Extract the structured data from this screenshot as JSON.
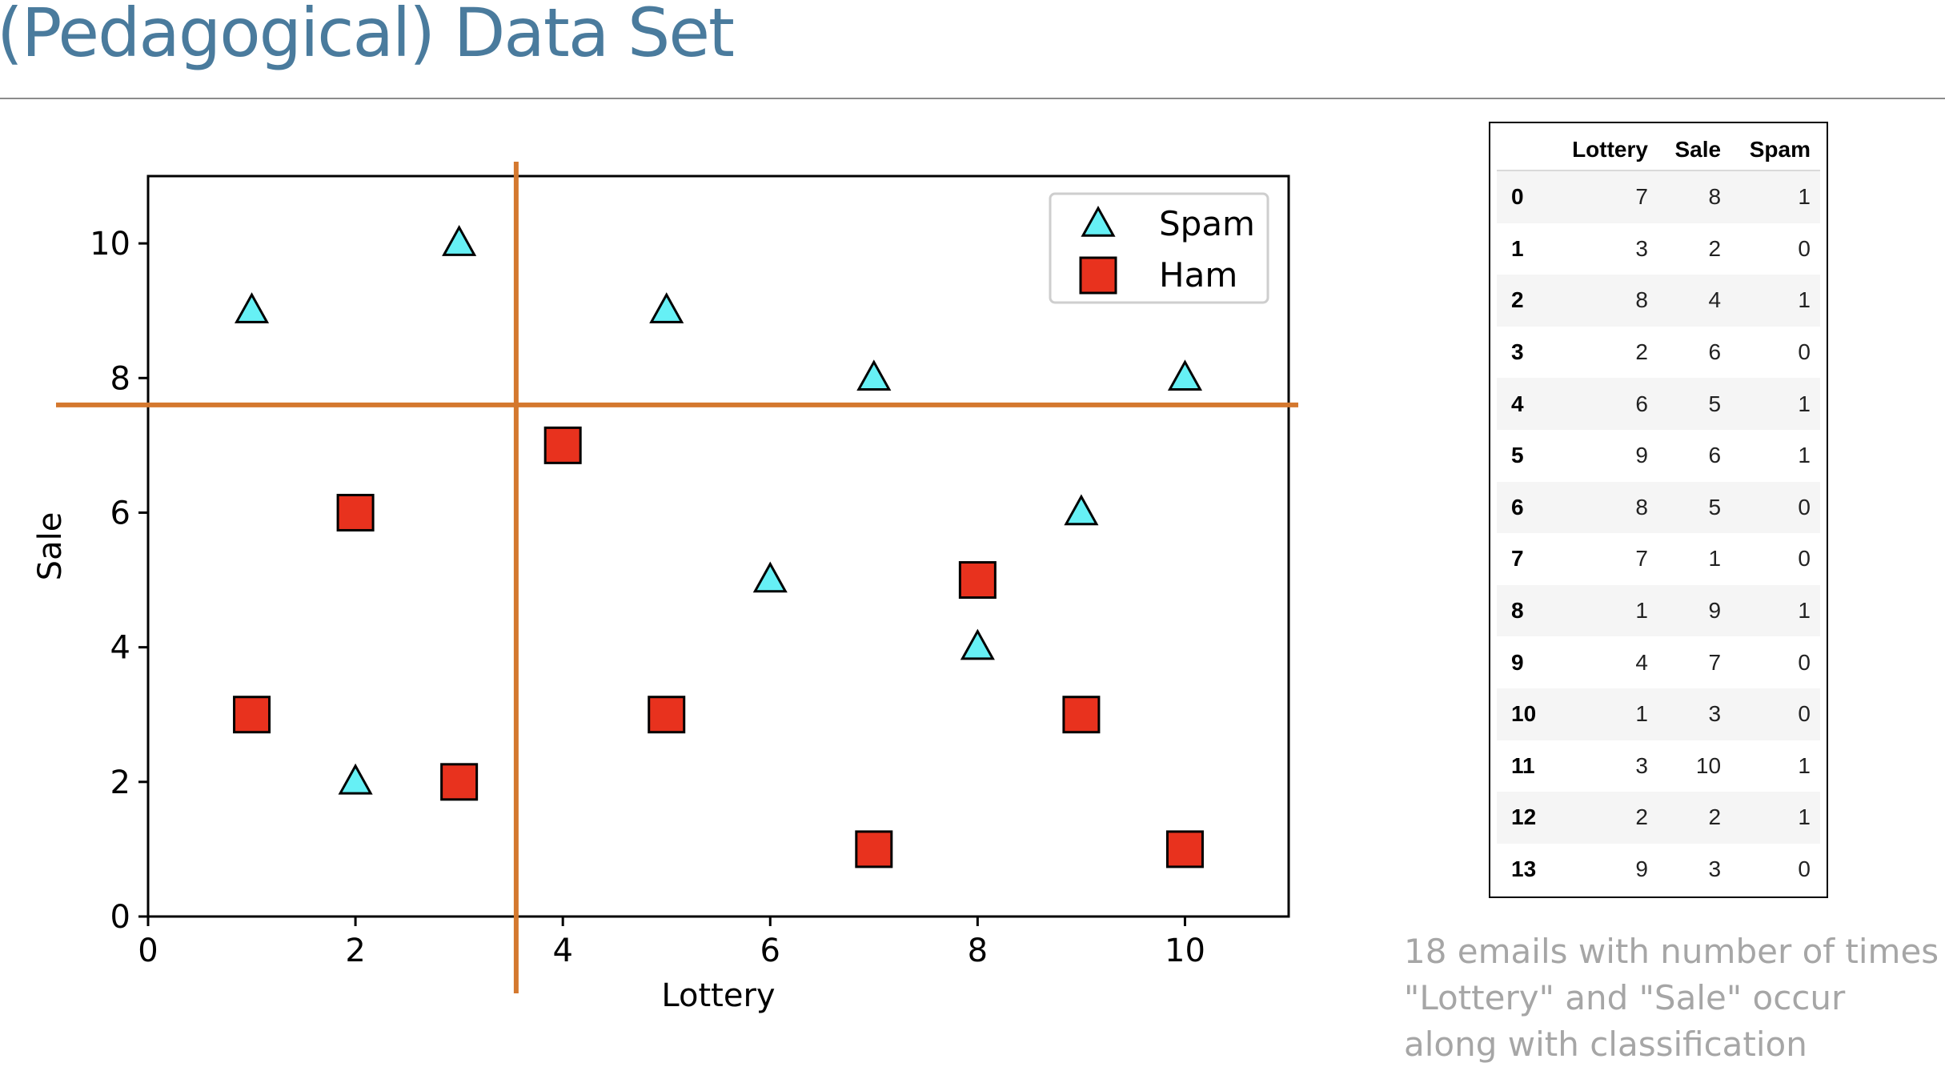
{
  "slide": {
    "title": "(Pedagogical) Data Set",
    "caption": "18 emails with  number of times \"Lottery\" and \"Sale\" occur along with classification"
  },
  "colors": {
    "title": "#4a7b9d",
    "spam_fill": "#66f0f5",
    "ham_fill": "#e8321e",
    "split_line": "#d4782e",
    "caption": "#a6a6a6"
  },
  "chart_data": {
    "type": "scatter",
    "xlabel": "Lottery",
    "ylabel": "Sale",
    "xlim": [
      0,
      11
    ],
    "ylim": [
      0,
      11
    ],
    "xticks": [
      0,
      2,
      4,
      6,
      8,
      10
    ],
    "yticks": [
      0,
      2,
      4,
      6,
      8,
      10
    ],
    "grid": false,
    "legend_position": "top-right",
    "series": [
      {
        "name": "Spam",
        "marker": "triangle",
        "points": [
          [
            1,
            9
          ],
          [
            3,
            10
          ],
          [
            5,
            9
          ],
          [
            7,
            8
          ],
          [
            10,
            8
          ],
          [
            9,
            6
          ],
          [
            6,
            5
          ],
          [
            8,
            4
          ],
          [
            2,
            2
          ]
        ]
      },
      {
        "name": "Ham",
        "marker": "square",
        "points": [
          [
            4,
            7
          ],
          [
            2,
            6
          ],
          [
            8,
            5
          ],
          [
            1,
            3
          ],
          [
            5,
            3
          ],
          [
            9,
            3
          ],
          [
            3,
            2
          ],
          [
            7,
            1
          ],
          [
            10,
            1
          ]
        ]
      }
    ],
    "split_lines": {
      "x": 3.55,
      "y": 7.6
    }
  },
  "table": {
    "columns": [
      "",
      "Lottery",
      "Sale",
      "Spam"
    ],
    "rows": [
      [
        "0",
        "7",
        "8",
        "1"
      ],
      [
        "1",
        "3",
        "2",
        "0"
      ],
      [
        "2",
        "8",
        "4",
        "1"
      ],
      [
        "3",
        "2",
        "6",
        "0"
      ],
      [
        "4",
        "6",
        "5",
        "1"
      ],
      [
        "5",
        "9",
        "6",
        "1"
      ],
      [
        "6",
        "8",
        "5",
        "0"
      ],
      [
        "7",
        "7",
        "1",
        "0"
      ],
      [
        "8",
        "1",
        "9",
        "1"
      ],
      [
        "9",
        "4",
        "7",
        "0"
      ],
      [
        "10",
        "1",
        "3",
        "0"
      ],
      [
        "11",
        "3",
        "10",
        "1"
      ],
      [
        "12",
        "2",
        "2",
        "1"
      ],
      [
        "13",
        "9",
        "3",
        "0"
      ]
    ]
  }
}
